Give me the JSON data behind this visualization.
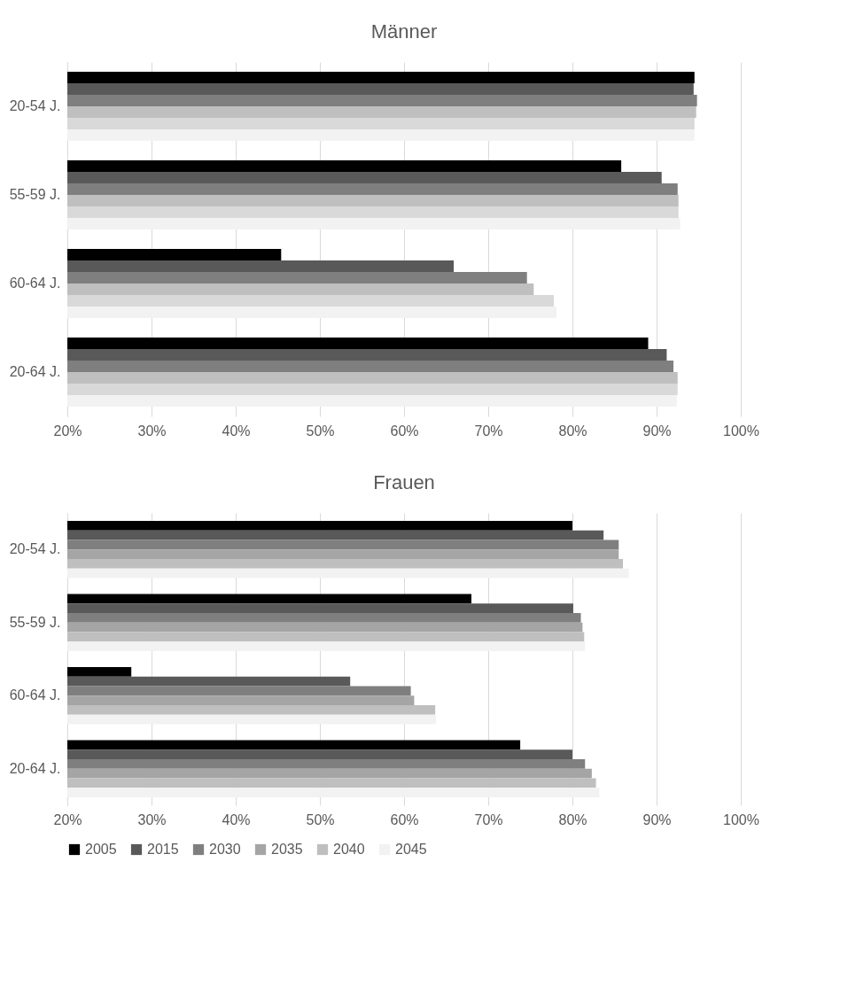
{
  "chart_data": [
    {
      "type": "bar",
      "orientation": "horizontal",
      "title": "Männer",
      "categories": [
        "20-54 J.",
        "55-59 J.",
        "60-64 J.",
        "20-64 J."
      ],
      "xlim": [
        20,
        100
      ],
      "xticks": [
        {
          "value": 20,
          "label": "20%"
        },
        {
          "value": 30,
          "label": "30%"
        },
        {
          "value": 40,
          "label": "40%"
        },
        {
          "value": 50,
          "label": "50%"
        },
        {
          "value": 60,
          "label": "60%"
        },
        {
          "value": 70,
          "label": "70%"
        },
        {
          "value": 80,
          "label": "80%"
        },
        {
          "value": 90,
          "label": "90%"
        },
        {
          "value": 100,
          "label": "100%"
        }
      ],
      "grid": "x",
      "series": [
        {
          "color": "#000000",
          "values": [
            94.5,
            85.8,
            45.4,
            89.0
          ]
        },
        {
          "color": "#595959",
          "values": [
            94.4,
            90.6,
            65.9,
            91.2
          ]
        },
        {
          "color": "#7f7f7f",
          "values": [
            94.8,
            92.5,
            74.6,
            92.0
          ]
        },
        {
          "color": "#bfbfbf",
          "values": [
            94.7,
            92.6,
            75.4,
            92.5
          ]
        },
        {
          "color": "#d9d9d9",
          "values": [
            94.5,
            92.6,
            77.8,
            92.5
          ]
        },
        {
          "color": "#f2f2f2",
          "values": [
            94.5,
            92.8,
            78.1,
            92.4
          ]
        }
      ]
    },
    {
      "type": "bar",
      "orientation": "horizontal",
      "title": "Frauen",
      "categories": [
        "20-54 J.",
        "55-59 J.",
        "60-64 J.",
        "20-64 J."
      ],
      "xlim": [
        20,
        100
      ],
      "xticks": [
        {
          "value": 20,
          "label": "20%"
        },
        {
          "value": 30,
          "label": "30%"
        },
        {
          "value": 40,
          "label": "40%"
        },
        {
          "value": 50,
          "label": "50%"
        },
        {
          "value": 60,
          "label": "60%"
        },
        {
          "value": 70,
          "label": "70%"
        },
        {
          "value": 80,
          "label": "80%"
        },
        {
          "value": 90,
          "label": "90%"
        },
        {
          "value": 100,
          "label": "100%"
        }
      ],
      "grid": "x",
      "legend": "bottom",
      "series": [
        {
          "name": "2005",
          "color": "#000000",
          "values": [
            80.0,
            68.0,
            27.6,
            73.8
          ]
        },
        {
          "name": "2015",
          "color": "#595959",
          "values": [
            83.7,
            80.1,
            53.6,
            80.0
          ]
        },
        {
          "name": "2030",
          "color": "#7f7f7f",
          "values": [
            85.5,
            81.0,
            60.8,
            81.5
          ]
        },
        {
          "name": "2035",
          "color": "#a5a5a5",
          "values": [
            85.5,
            81.2,
            61.2,
            82.3
          ]
        },
        {
          "name": "2040",
          "color": "#bfbfbf",
          "values": [
            86.0,
            81.4,
            63.7,
            82.8
          ]
        },
        {
          "name": "2045",
          "color": "#f2f2f2",
          "values": [
            86.7,
            81.5,
            63.8,
            83.2
          ]
        }
      ]
    }
  ]
}
